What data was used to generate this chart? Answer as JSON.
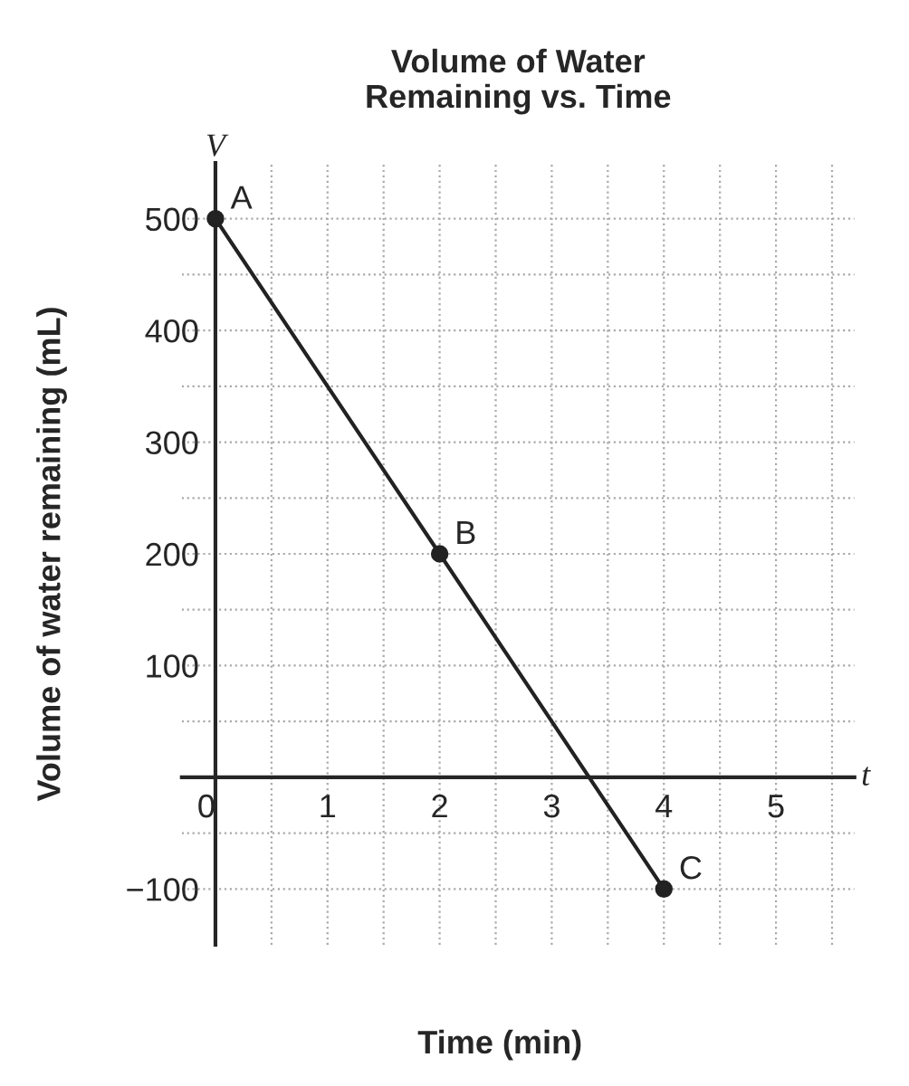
{
  "chart_data": {
    "type": "line",
    "title": "Volume of Water\nRemaining vs. Time",
    "xlabel": "Time (min)",
    "ylabel": "Volume of water remaining (mL)",
    "x": [
      0,
      2,
      4
    ],
    "series": [
      {
        "color": "#222222",
        "values": [
          500,
          200,
          -100
        ]
      }
    ],
    "marker": "circle",
    "line_style": "solid",
    "grid": true,
    "xlim": [
      -0.3,
      5.7
    ],
    "ylim": [
      -150,
      550
    ],
    "xticks": [
      0,
      {
        "value": 0.5,
        "label": null
      },
      1,
      {
        "value": 1.5,
        "label": null
      },
      2,
      {
        "value": 2.5,
        "label": null
      },
      3,
      {
        "value": 3.5,
        "label": null
      },
      4,
      {
        "value": 4.5,
        "label": null
      },
      5,
      {
        "value": 5.5,
        "label": null
      }
    ],
    "yticks": [
      {
        "value": -100,
        "label": "−100"
      },
      {
        "value": -50,
        "label": null
      },
      {
        "value": 0,
        "label": null
      },
      {
        "value": 50,
        "label": null
      },
      100,
      {
        "value": 150,
        "label": null
      },
      200,
      {
        "value": 250,
        "label": null
      },
      300,
      {
        "value": 350,
        "label": null
      },
      400,
      {
        "value": 450,
        "label": null
      },
      500
    ],
    "annotations": [
      {
        "text": "A",
        "x": 0,
        "y": 500
      },
      {
        "text": "B",
        "x": 2,
        "y": 200
      },
      {
        "text": "C",
        "x": 4,
        "y": -100
      },
      "V",
      "t"
    ]
  }
}
